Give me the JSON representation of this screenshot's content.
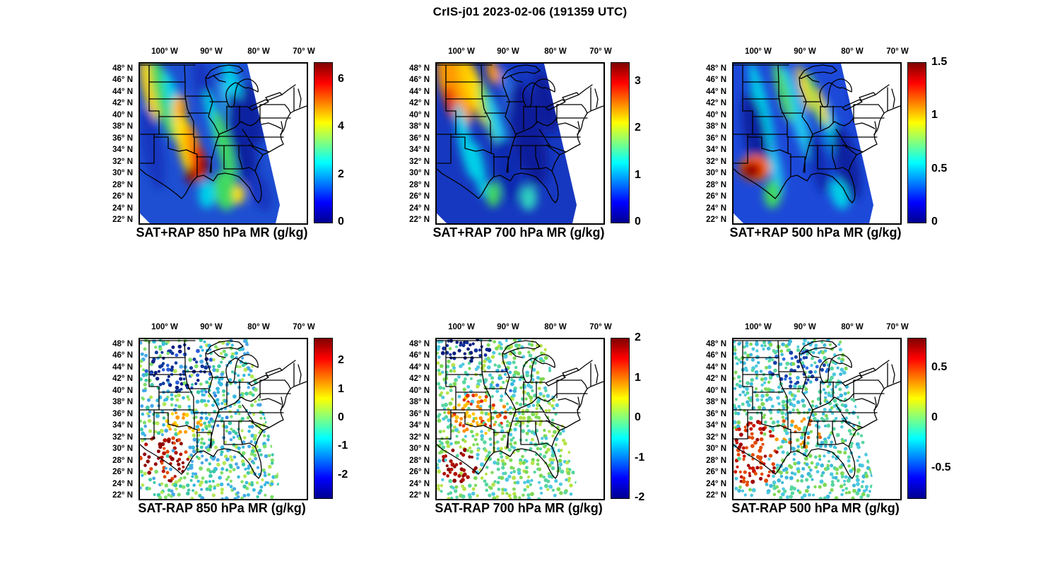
{
  "figure_title": "CrIS-j01 2023-02-06 (191359 UTC)",
  "axes": {
    "lon_ticks": [
      "100° W",
      "90° W",
      "80° W",
      "70° W"
    ],
    "lat_ticks": [
      "48° N",
      "46° N",
      "44° N",
      "42° N",
      "40° N",
      "38° N",
      "36° N",
      "34° N",
      "32° N",
      "30° N",
      "28° N",
      "26° N",
      "24° N",
      "22° N"
    ]
  },
  "panels": [
    {
      "id": "sat-plus-rap-850",
      "title": "SAT+RAP 850 hPa MR (g/kg)",
      "colorbar": {
        "min": 0,
        "max": 6.7,
        "ticks": [
          {
            "label": "6",
            "value": 6
          },
          {
            "label": "4",
            "value": 4
          },
          {
            "label": "2",
            "value": 2
          },
          {
            "label": "0",
            "value": 0
          }
        ]
      }
    },
    {
      "id": "sat-plus-rap-700",
      "title": "SAT+RAP 700 hPa MR (g/kg)",
      "colorbar": {
        "min": 0,
        "max": 3.4,
        "ticks": [
          {
            "label": "3",
            "value": 3
          },
          {
            "label": "2",
            "value": 2
          },
          {
            "label": "1",
            "value": 1
          },
          {
            "label": "0",
            "value": 0
          }
        ]
      }
    },
    {
      "id": "sat-plus-rap-500",
      "title": "SAT+RAP 500 hPa MR (g/kg)",
      "colorbar": {
        "min": 0,
        "max": 1.5,
        "ticks": [
          {
            "label": "1.5",
            "value": 1.5
          },
          {
            "label": "1",
            "value": 1
          },
          {
            "label": "0.5",
            "value": 0.5
          },
          {
            "label": "0",
            "value": 0
          }
        ]
      }
    },
    {
      "id": "sat-minus-rap-850",
      "title": "SAT-RAP 850 hPa MR (g/kg)",
      "colorbar": {
        "min": -2.8,
        "max": 2.8,
        "ticks": [
          {
            "label": "2",
            "value": 2
          },
          {
            "label": "1",
            "value": 1
          },
          {
            "label": "0",
            "value": 0
          },
          {
            "label": "-1",
            "value": -1
          },
          {
            "label": "-2",
            "value": -2
          }
        ]
      }
    },
    {
      "id": "sat-minus-rap-700",
      "title": "SAT-RAP 700 hPa MR (g/kg)",
      "colorbar": {
        "min": -2,
        "max": 2,
        "ticks": [
          {
            "label": "2",
            "value": 2
          },
          {
            "label": "1",
            "value": 1
          },
          {
            "label": "0",
            "value": 0
          },
          {
            "label": "-1",
            "value": -1
          },
          {
            "label": "-2",
            "value": -2
          }
        ]
      }
    },
    {
      "id": "sat-minus-rap-500",
      "title": "SAT-RAP 500 hPa MR (g/kg)",
      "colorbar": {
        "min": -0.8,
        "max": 0.8,
        "ticks": [
          {
            "label": "0.5",
            "value": 0.5
          },
          {
            "label": "0",
            "value": 0
          },
          {
            "label": "-0.5",
            "value": -0.5
          }
        ]
      }
    }
  ],
  "chart_data": {
    "figure_title": "CrIS-j01 2023-02-06 (191359 UTC)",
    "instrument_label": "CrIS-j01",
    "date": "2023-02-06",
    "time_utc": "191359",
    "layout": "2 rows x 3 columns of geographic panels, jet colorbar right of each panel, bold title below each panel",
    "map_region": "Central and eastern United States with state boundaries and Great Lakes",
    "lon_ticks_deg_w": [
      100,
      90,
      80,
      70
    ],
    "lat_ticks_deg_n": [
      48,
      46,
      44,
      42,
      40,
      38,
      36,
      34,
      32,
      30,
      28,
      26,
      24,
      22
    ],
    "panels": [
      {
        "type": "heatmap",
        "title": "SAT+RAP 850 hPa MR (g/kg)",
        "quantity": "850 hPa water-vapor mixing ratio, satellite retrieval + RAP",
        "units": "g/kg",
        "colormap": "jet",
        "colorbar_range": [
          0,
          6.7
        ],
        "colorbar_ticks": [
          0,
          2,
          4,
          6
        ],
        "pattern": "Diagonal satellite swath covers the central US; mostly 1-3 g/kg (blue/cyan) with diagonal cyan-green-yellow streaks and orange-red maxima of 4-6.5 g/kg over the southern plains, lower Mississippi valley and Texas Gulf coast; white (no data) over the northeastern US east of the swath."
      },
      {
        "type": "heatmap",
        "title": "SAT+RAP 700 hPa MR (g/kg)",
        "quantity": "700 hPa water-vapor mixing ratio, satellite retrieval + RAP",
        "units": "g/kg",
        "colormap": "jet",
        "colorbar_range": [
          0,
          3.4
        ],
        "colorbar_ticks": [
          0,
          1,
          2,
          3
        ],
        "pattern": "Orange-yellow maxima of 2.5-3.3 g/kg over the northern/central plains (upper left of swath), cyan streaks near 1.5 g/kg, broad dark-blue values below 0.5 g/kg over the Midwest and Southeast."
      },
      {
        "type": "heatmap",
        "title": "SAT+RAP 500 hPa MR (g/kg)",
        "quantity": "500 hPa water-vapor mixing ratio, satellite retrieval + RAP",
        "units": "g/kg",
        "colormap": "jet",
        "colorbar_range": [
          0,
          1.5
        ],
        "colorbar_ticks": [
          0,
          0.5,
          1,
          1.5
        ],
        "pattern": "Mostly blue 0.2-0.6 g/kg with diagonal cyan streaks near 0.7 g/kg, a yellow-green band south of the Great Lakes, and an isolated dark-red maximum near 1.5 g/kg on the Texas Gulf coast."
      },
      {
        "type": "scatter",
        "title": "SAT-RAP 850 hPa MR (g/kg)",
        "quantity": "850 hPa mixing-ratio difference, satellite minus RAP",
        "units": "g/kg",
        "colormap": "jet",
        "colorbar_range": [
          -2.8,
          2.8
        ],
        "colorbar_ticks": [
          -2,
          -1,
          0,
          1,
          2
        ],
        "pattern": "Colored retrieval footprints: near zero (green/cyan) over most of the domain, negative dark-blue clusters (-1 to -2.5) over the northern plains and upper Midwest, strong positive red cluster (+2 to +2.8) over south Texas, scattered orange over the southern plains."
      },
      {
        "type": "scatter",
        "title": "SAT-RAP 700 hPa MR (g/kg)",
        "quantity": "700 hPa mixing-ratio difference, satellite minus RAP",
        "units": "g/kg",
        "colormap": "jet",
        "colorbar_range": [
          -2,
          2
        ],
        "colorbar_ticks": [
          -2,
          -1,
          0,
          1,
          2
        ],
        "pattern": "Mostly slightly positive (green/yellow); dark-blue negative cluster in the far north, orange-red positive band (+1 to +2) from Kansas-Oklahoma into Missouri, dark-red maxima over south Texas."
      },
      {
        "type": "scatter",
        "title": "SAT-RAP 500 hPa MR (g/kg)",
        "quantity": "500 hPa mixing-ratio difference, satellite minus RAP",
        "units": "g/kg",
        "colormap": "jet",
        "colorbar_range": [
          -0.8,
          0.8
        ],
        "colorbar_ticks": [
          -0.5,
          0,
          0.5
        ],
        "pattern": "Mostly near zero (green/cyan); large dark-red positive cluster (+0.6 to +0.8) over Texas, scattered orange over the mid-South, blue negatives (-0.3 to -0.6) over the upper Midwest."
      }
    ]
  }
}
